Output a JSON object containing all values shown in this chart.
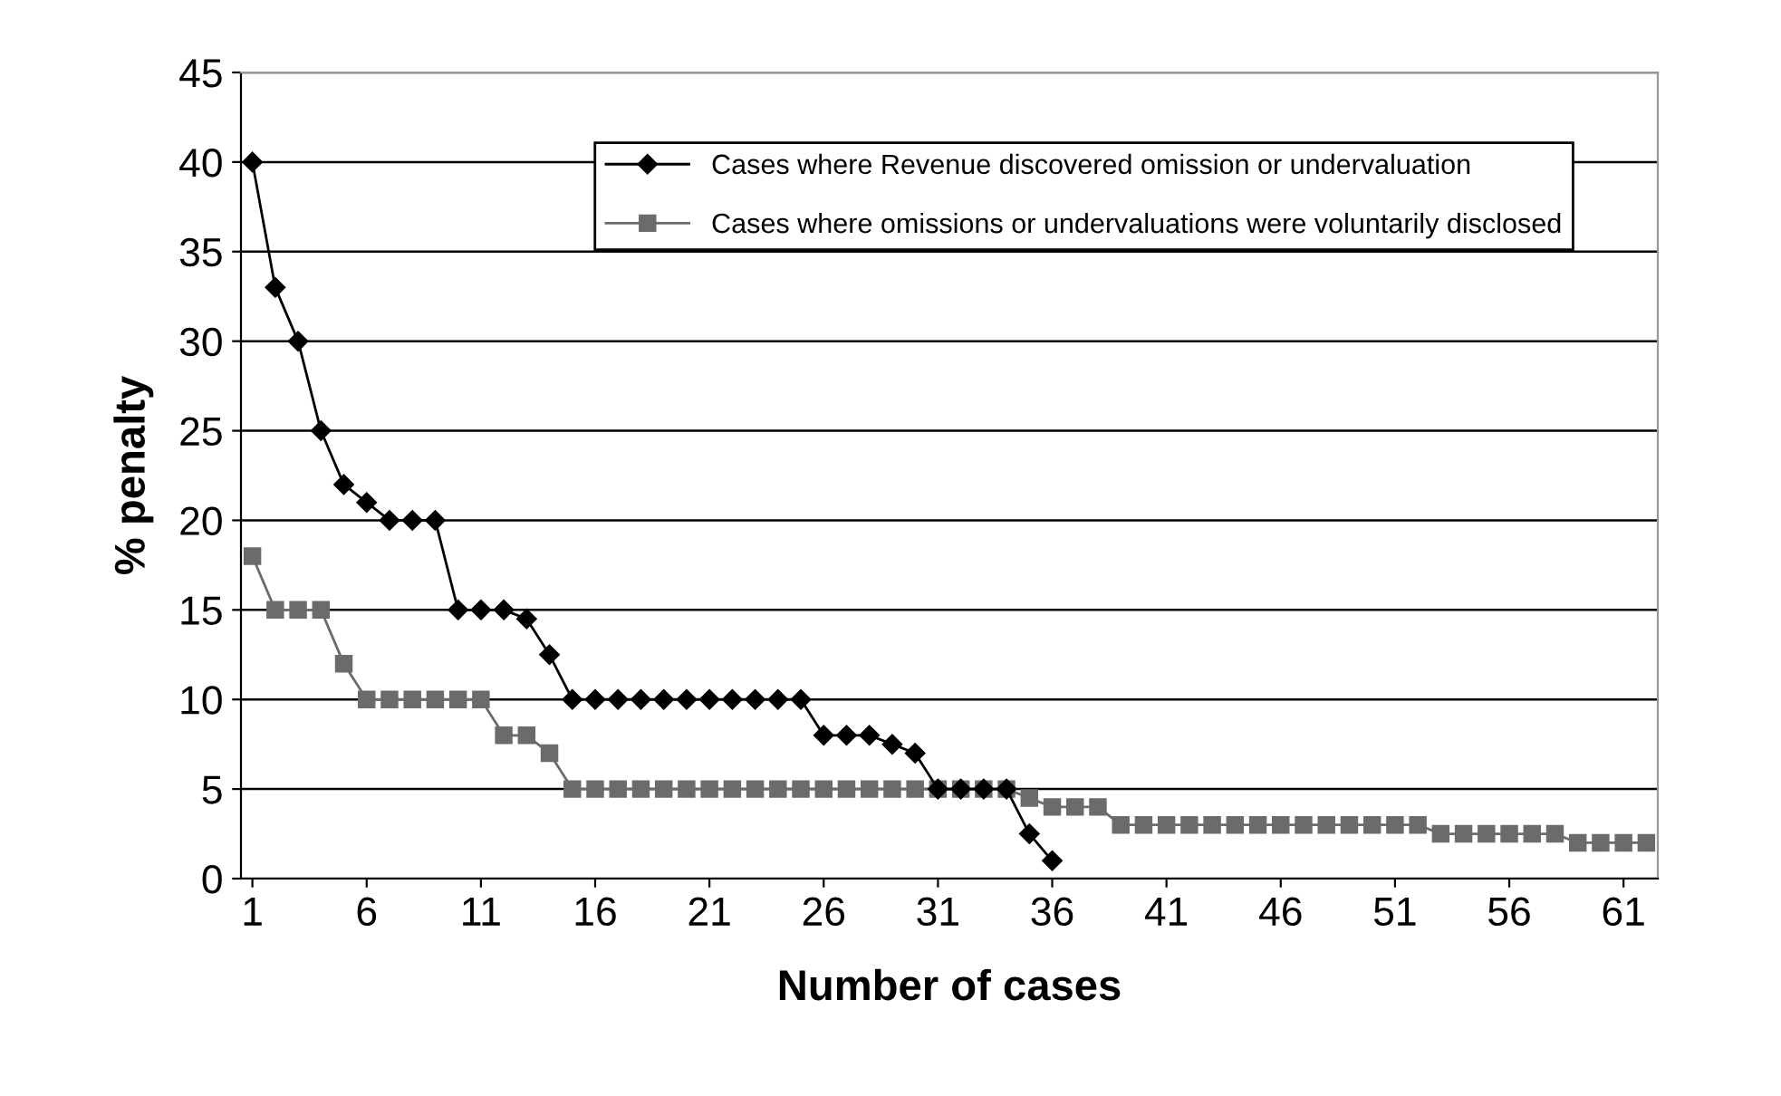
{
  "chart_data": {
    "type": "line",
    "xlabel": "Number of cases",
    "ylabel": "% penalty",
    "xlim": [
      0.5,
      62.5
    ],
    "xticks": [
      1,
      6,
      11,
      16,
      21,
      26,
      31,
      36,
      41,
      46,
      51,
      56,
      61
    ],
    "ylim": [
      0,
      45
    ],
    "yticks": [
      0,
      5,
      10,
      15,
      20,
      25,
      30,
      35,
      40,
      45
    ],
    "grid": "y",
    "legend": "top",
    "line_style": "solid",
    "series": [
      {
        "name": "Cases where Revenue discovered omission or undervaluation",
        "color": "#000000",
        "marker": "diamond",
        "x": [
          1,
          2,
          3,
          4,
          5,
          6,
          7,
          8,
          9,
          10,
          11,
          12,
          13,
          14,
          15,
          16,
          17,
          18,
          19,
          20,
          21,
          22,
          23,
          24,
          25,
          26,
          27,
          28,
          29,
          30,
          31,
          32,
          33,
          34,
          35,
          36
        ],
        "values": [
          40,
          33,
          30,
          25,
          22,
          21,
          20,
          20,
          20,
          15,
          15,
          15,
          14.5,
          12.5,
          10,
          10,
          10,
          10,
          10,
          10,
          10,
          10,
          10,
          10,
          10,
          8,
          8,
          8,
          7.5,
          7,
          5,
          5,
          5,
          5,
          2.5,
          1
        ]
      },
      {
        "name": "Cases where omissions or undervaluations were voluntarily disclosed",
        "color": "#6b6b6b",
        "marker": "square",
        "x": [
          1,
          2,
          3,
          4,
          5,
          6,
          7,
          8,
          9,
          10,
          11,
          12,
          13,
          14,
          15,
          16,
          17,
          18,
          19,
          20,
          21,
          22,
          23,
          24,
          25,
          26,
          27,
          28,
          29,
          30,
          31,
          32,
          33,
          34,
          35,
          36,
          37,
          38,
          39,
          40,
          41,
          42,
          43,
          44,
          45,
          46,
          47,
          48,
          49,
          50,
          51,
          52,
          53,
          54,
          55,
          56,
          57,
          58,
          59,
          60,
          61,
          62
        ],
        "values": [
          18,
          15,
          15,
          15,
          12,
          10,
          10,
          10,
          10,
          10,
          10,
          8,
          8,
          7,
          5,
          5,
          5,
          5,
          5,
          5,
          5,
          5,
          5,
          5,
          5,
          5,
          5,
          5,
          5,
          5,
          5,
          5,
          5,
          5,
          4.5,
          4,
          4,
          4,
          3,
          3,
          3,
          3,
          3,
          3,
          3,
          3,
          3,
          3,
          3,
          3,
          3,
          3,
          2.5,
          2.5,
          2.5,
          2.5,
          2.5,
          2.5,
          2,
          2,
          2,
          2
        ]
      }
    ]
  }
}
